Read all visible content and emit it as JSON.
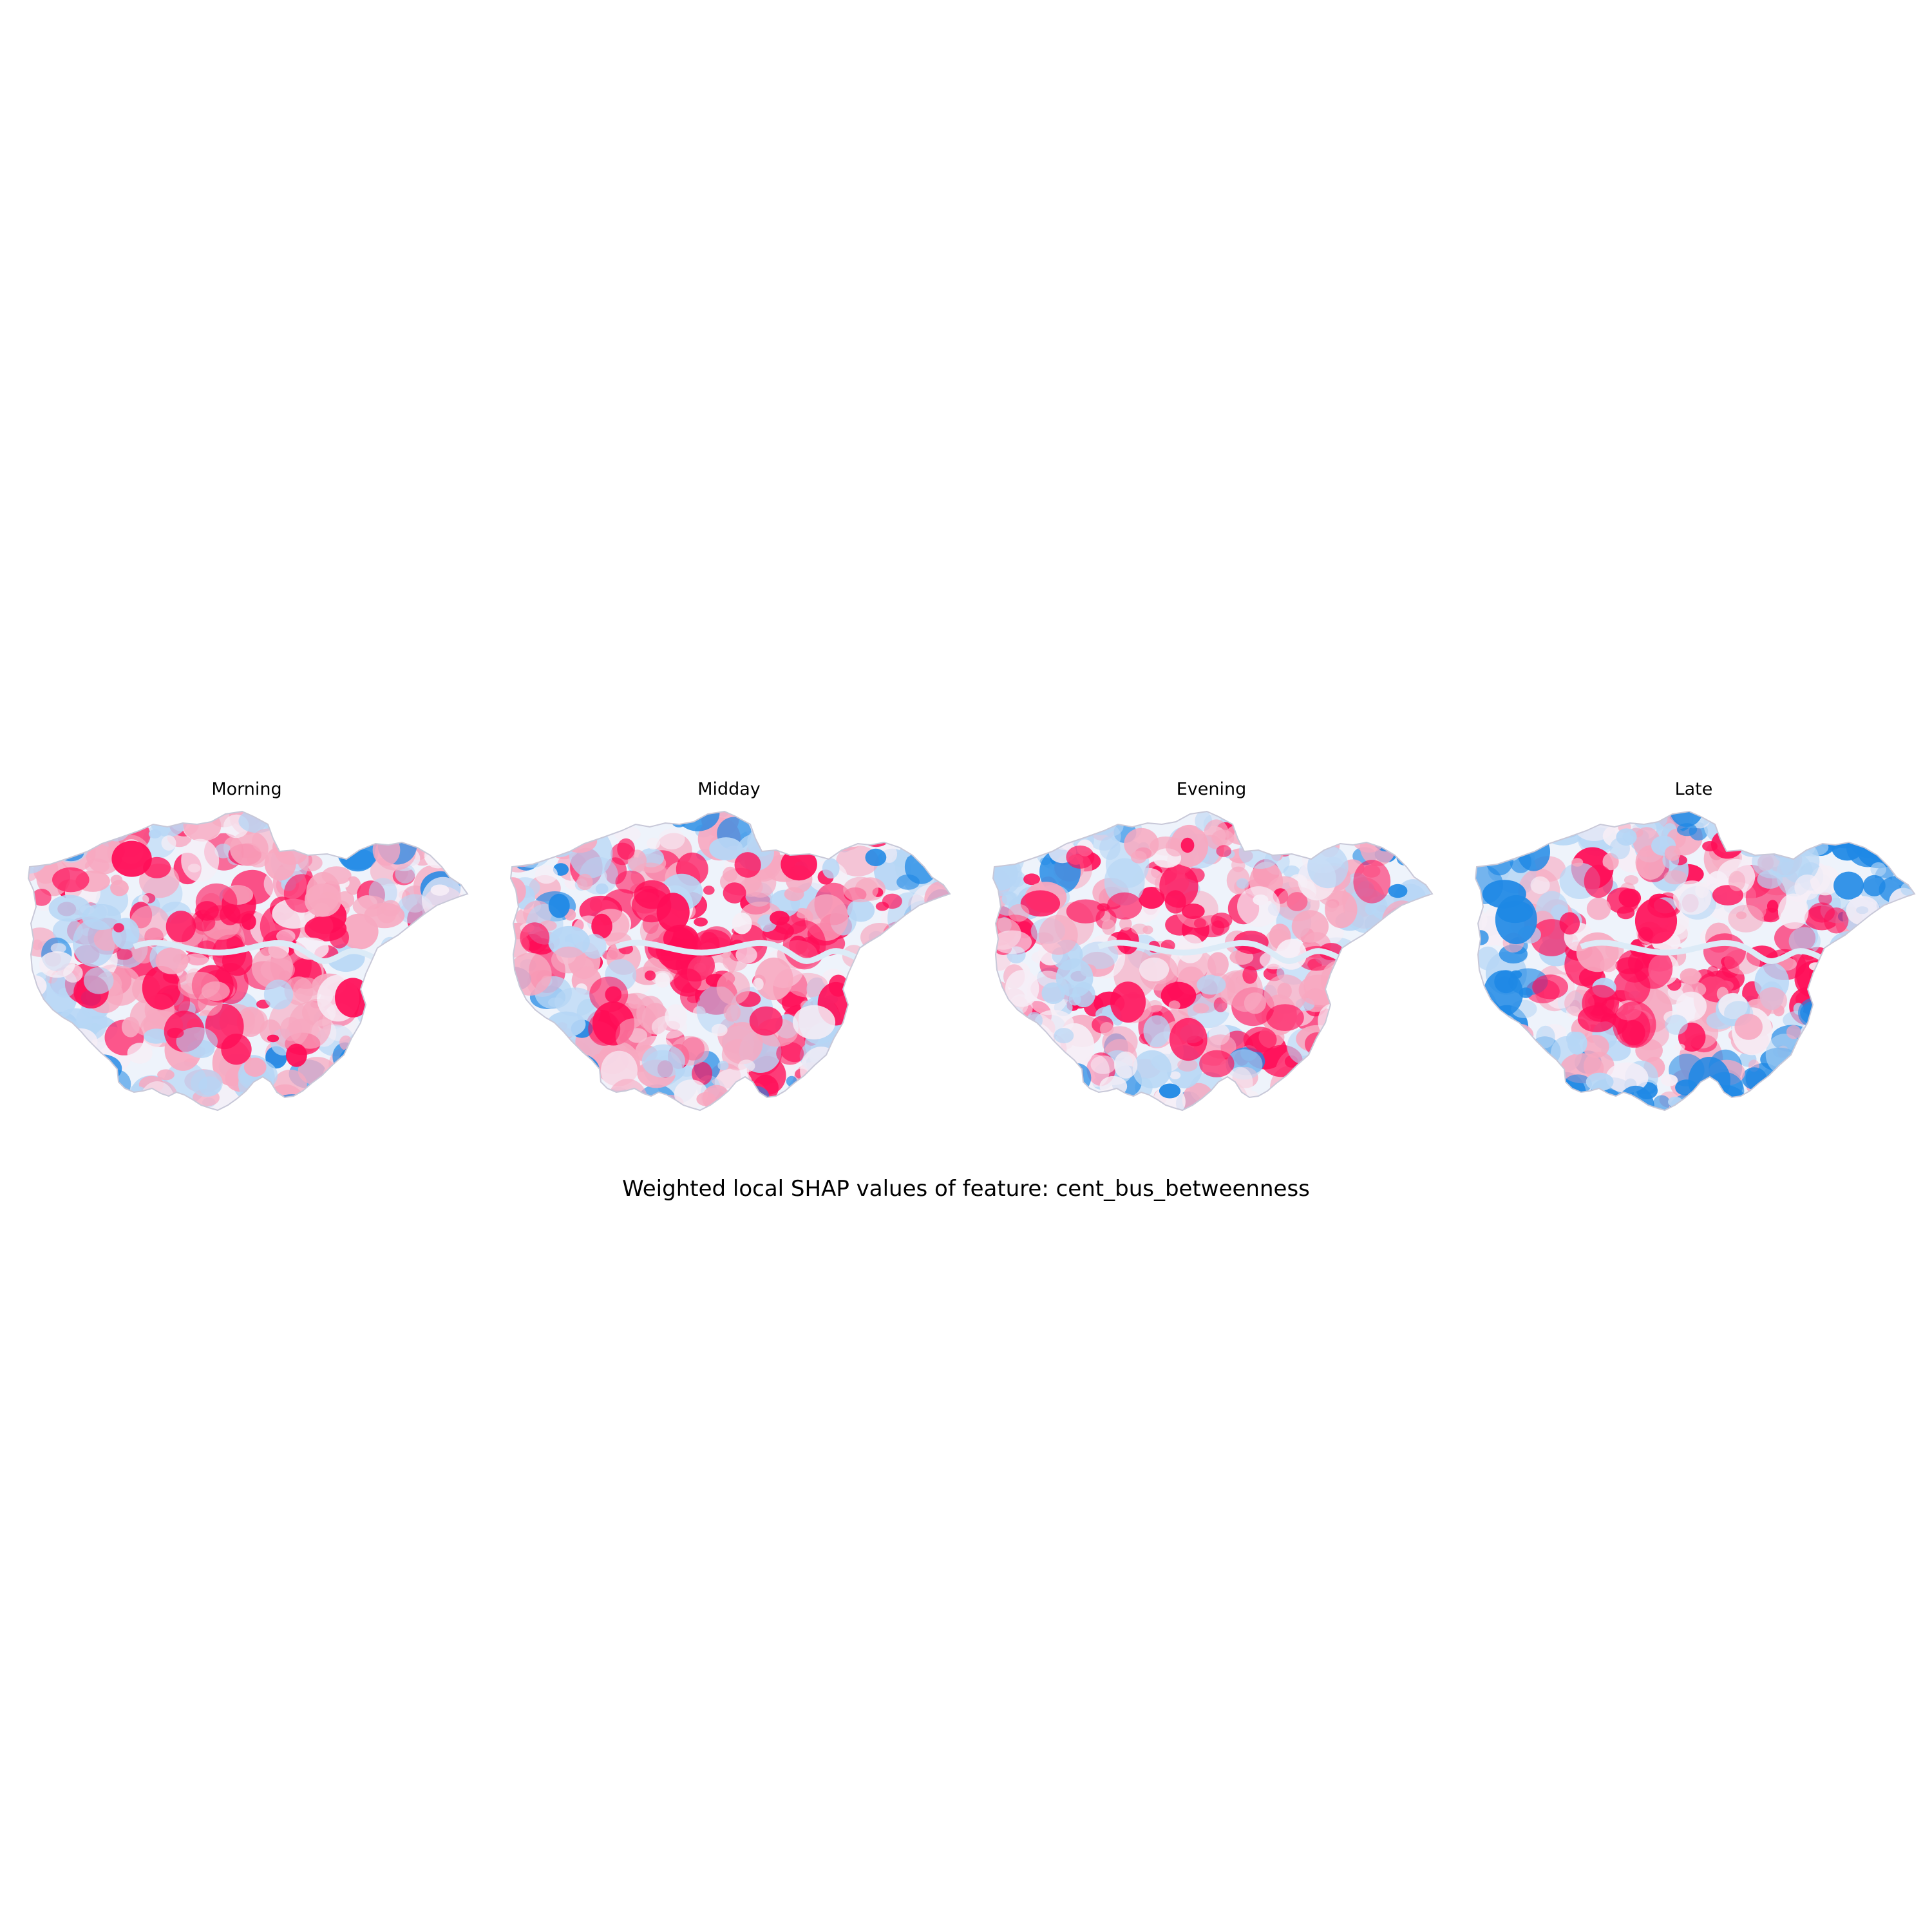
{
  "figure": {
    "caption": "Weighted local SHAP values of feature: cent_bus_betweenness"
  },
  "colors": {
    "positive": "#ff0d57",
    "positive_light": "#f7a8c0",
    "neutral": "#f6eef6",
    "negative_light": "#b6d6f5",
    "negative": "#1e88e5",
    "boundary": "#c8c8d8"
  },
  "panels": [
    {
      "title": "Morning",
      "pattern": 0
    },
    {
      "title": "Midday",
      "pattern": 1
    },
    {
      "title": "Evening",
      "pattern": 2
    },
    {
      "title": "Late",
      "pattern": 3
    }
  ]
}
